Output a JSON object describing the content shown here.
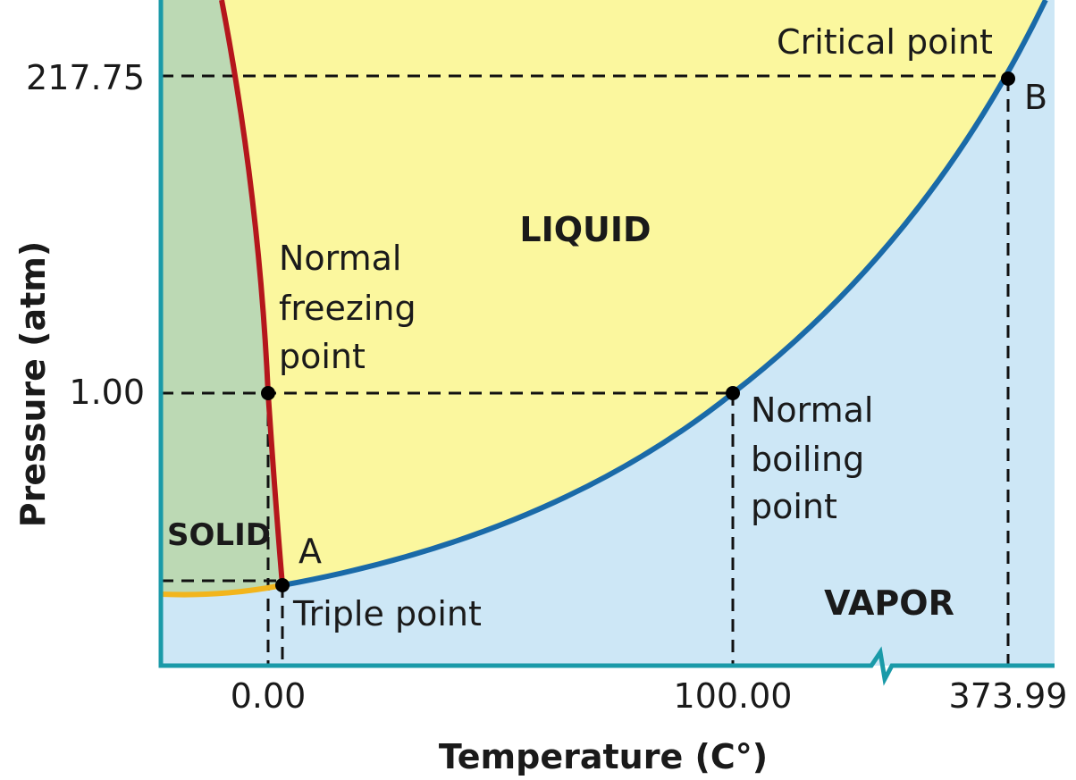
{
  "diagram": {
    "y_axis_title": "Pressure (atm)",
    "x_axis_title": "Temperature (C°)",
    "y_ticks": [
      "217.75",
      "1.00"
    ],
    "x_ticks": [
      "0.00",
      "100.00",
      "373.99"
    ],
    "regions": {
      "solid": "SOLID",
      "liquid": "LIQUID",
      "vapor": "VAPOR"
    },
    "points": {
      "critical": {
        "label": "Critical point",
        "letter": "B"
      },
      "triple": {
        "label": "Triple point",
        "letter": "A"
      },
      "freezing": {
        "lines": [
          "Normal",
          "freezing",
          "point"
        ]
      },
      "boiling": {
        "lines": [
          "Normal",
          "boiling",
          "point"
        ]
      }
    }
  }
}
